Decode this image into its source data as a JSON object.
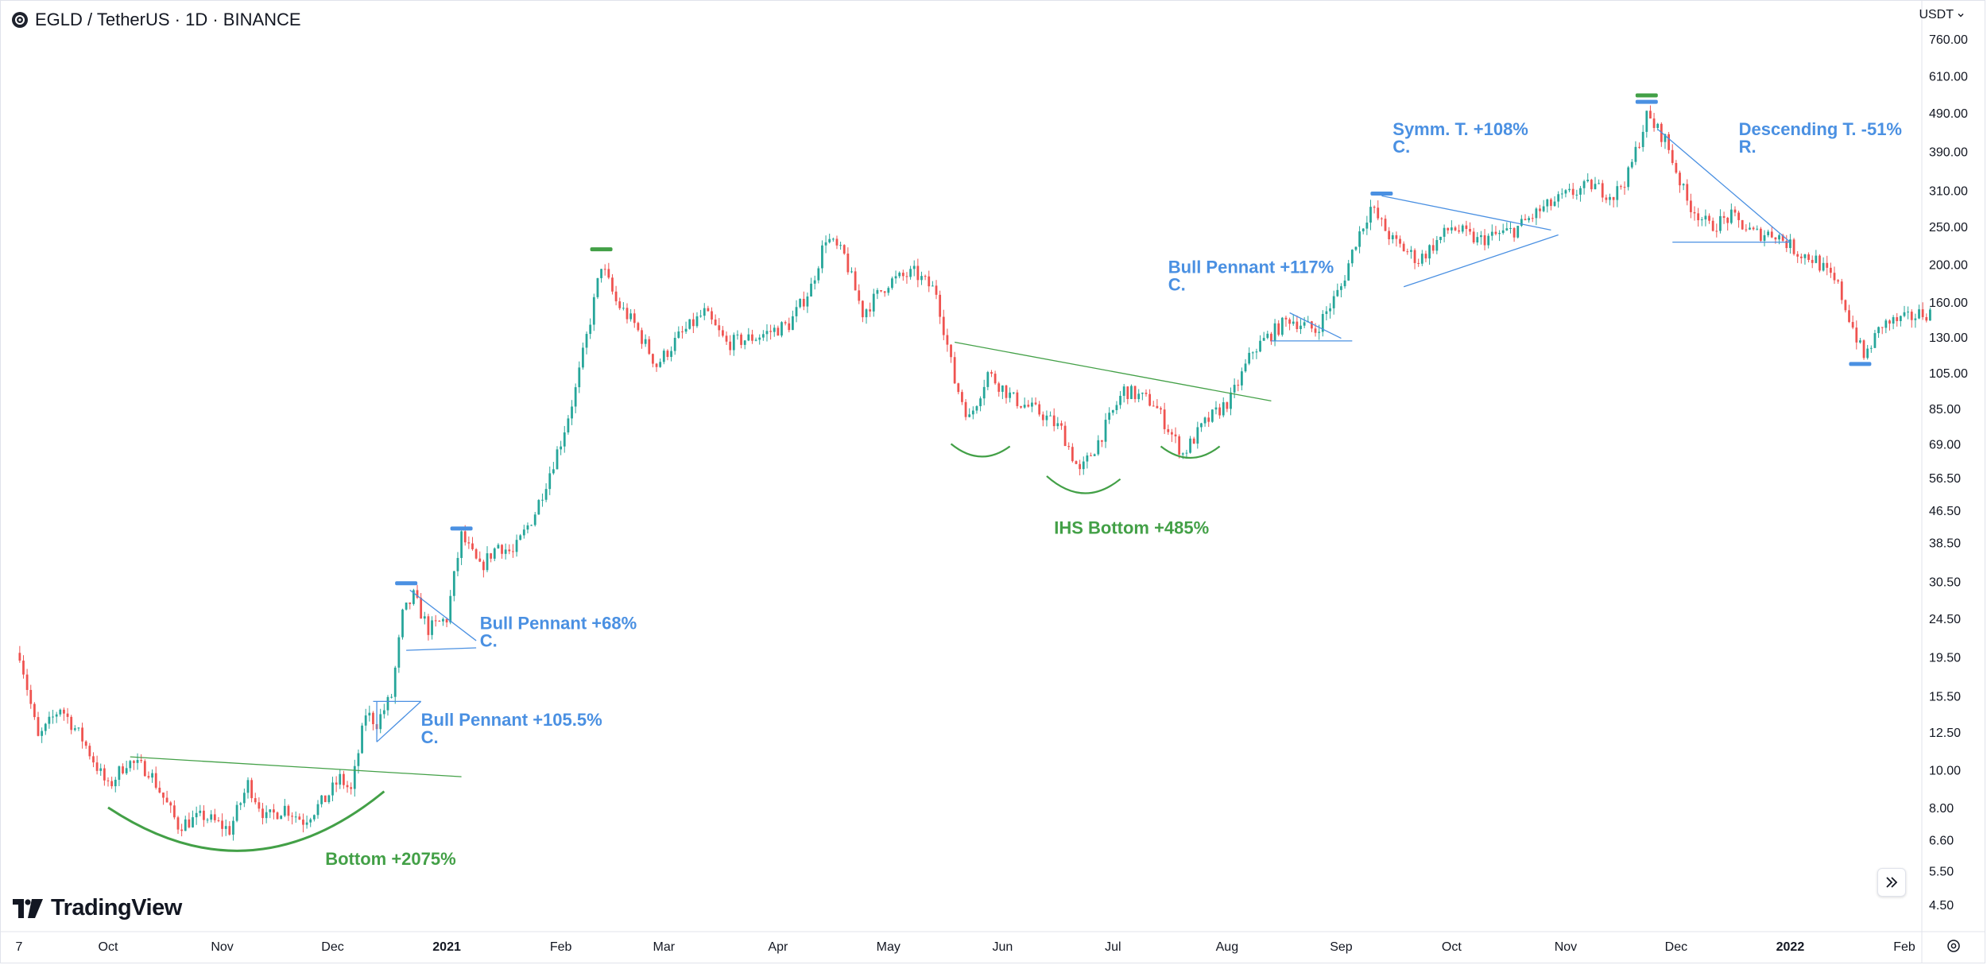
{
  "header": {
    "title": "EGLD / TetherUS · 1D · BINANCE"
  },
  "currency": {
    "label": "USDT"
  },
  "branding": {
    "name": "TradingView"
  },
  "colors": {
    "up": "#26a69a",
    "down": "#ef5350",
    "annotation_blue": "#4a90e2",
    "annotation_green": "#43a047",
    "axis_text": "#131722",
    "border": "#e0e3eb"
  },
  "icons": {
    "goto": "chevron-double-right-icon",
    "settings": "gear-icon",
    "logo": "tradingview-logo-icon"
  },
  "chart_data": {
    "type": "candlestick",
    "title": "EGLD / TetherUS · 1D · BINANCE",
    "scale": "log",
    "ylim": [
      4.0,
      900.0
    ],
    "xlim": [
      "2020-09-07",
      "2022-02-08"
    ],
    "grid": false,
    "price_axis_ticks": [
      760.0,
      610.0,
      490.0,
      390.0,
      310.0,
      250.0,
      200.0,
      160.0,
      130.0,
      105.0,
      85.0,
      69.0,
      56.5,
      46.5,
      38.5,
      30.5,
      24.5,
      19.5,
      15.5,
      12.5,
      10.0,
      8.0,
      6.6,
      5.5,
      4.5
    ],
    "price_axis_labels": [
      "760.00",
      "610.00",
      "490.00",
      "390.00",
      "310.00",
      "250.00",
      "200.00",
      "160.00",
      "130.00",
      "105.00",
      "85.00",
      "69.00",
      "56.50",
      "46.50",
      "38.50",
      "30.50",
      "24.50",
      "19.50",
      "15.50",
      "12.50",
      "10.00",
      "8.00",
      "6.60",
      "5.50",
      "4.50"
    ],
    "time_axis_ticks": [
      {
        "label": "7",
        "date": "2020-09-07",
        "bold": false
      },
      {
        "label": "Oct",
        "date": "2020-10-01",
        "bold": false
      },
      {
        "label": "Nov",
        "date": "2020-11-01",
        "bold": false
      },
      {
        "label": "Dec",
        "date": "2020-12-01",
        "bold": false
      },
      {
        "label": "2021",
        "date": "2021-01-01",
        "bold": true
      },
      {
        "label": "Feb",
        "date": "2021-02-01",
        "bold": false
      },
      {
        "label": "Mar",
        "date": "2021-03-01",
        "bold": false
      },
      {
        "label": "Apr",
        "date": "2021-04-01",
        "bold": false
      },
      {
        "label": "May",
        "date": "2021-05-01",
        "bold": false
      },
      {
        "label": "Jun",
        "date": "2021-06-01",
        "bold": false
      },
      {
        "label": "Jul",
        "date": "2021-07-01",
        "bold": false
      },
      {
        "label": "Aug",
        "date": "2021-08-01",
        "bold": false
      },
      {
        "label": "Sep",
        "date": "2021-09-01",
        "bold": false
      },
      {
        "label": "Oct",
        "date": "2021-10-01",
        "bold": false
      },
      {
        "label": "Nov",
        "date": "2021-11-01",
        "bold": false
      },
      {
        "label": "Dec",
        "date": "2021-12-01",
        "bold": false
      },
      {
        "label": "2022",
        "date": "2022-01-01",
        "bold": true
      },
      {
        "label": "Feb",
        "date": "2022-02-01",
        "bold": false
      }
    ],
    "price_path": [
      [
        "2020-09-07",
        20.0
      ],
      [
        "2020-09-12",
        12.0
      ],
      [
        "2020-09-18",
        14.5
      ],
      [
        "2020-09-24",
        12.0
      ],
      [
        "2020-10-01",
        9.0
      ],
      [
        "2020-10-06",
        10.5
      ],
      [
        "2020-10-12",
        10.0
      ],
      [
        "2020-10-20",
        7.2
      ],
      [
        "2020-10-27",
        7.6
      ],
      [
        "2020-11-03",
        7.0
      ],
      [
        "2020-11-08",
        9.2
      ],
      [
        "2020-11-13",
        7.5
      ],
      [
        "2020-11-18",
        8.0
      ],
      [
        "2020-11-23",
        7.4
      ],
      [
        "2020-11-29",
        8.4
      ],
      [
        "2020-12-03",
        9.5
      ],
      [
        "2020-12-06",
        8.8
      ],
      [
        "2020-12-10",
        14.0
      ],
      [
        "2020-12-13",
        13.2
      ],
      [
        "2020-12-17",
        15.5
      ],
      [
        "2020-12-20",
        25.0
      ],
      [
        "2020-12-23",
        28.0
      ],
      [
        "2020-12-27",
        23.0
      ],
      [
        "2021-01-01",
        24.5
      ],
      [
        "2021-01-05",
        40.0
      ],
      [
        "2021-01-10",
        33.0
      ],
      [
        "2021-01-15",
        38.0
      ],
      [
        "2021-01-19",
        36.0
      ],
      [
        "2021-01-25",
        46.0
      ],
      [
        "2021-02-01",
        70.0
      ],
      [
        "2021-02-05",
        95.0
      ],
      [
        "2021-02-10",
        160.0
      ],
      [
        "2021-02-12",
        200.0
      ],
      [
        "2021-02-16",
        160.0
      ],
      [
        "2021-02-21",
        140.0
      ],
      [
        "2021-02-27",
        110.0
      ],
      [
        "2021-03-05",
        130.0
      ],
      [
        "2021-03-12",
        150.0
      ],
      [
        "2021-03-18",
        125.0
      ],
      [
        "2021-03-26",
        130.0
      ],
      [
        "2021-04-04",
        140.0
      ],
      [
        "2021-04-10",
        175.0
      ],
      [
        "2021-04-14",
        235.0
      ],
      [
        "2021-04-19",
        210.0
      ],
      [
        "2021-04-24",
        150.0
      ],
      [
        "2021-05-01",
        180.0
      ],
      [
        "2021-05-08",
        190.0
      ],
      [
        "2021-05-14",
        170.0
      ],
      [
        "2021-05-19",
        100.0
      ],
      [
        "2021-05-23",
        80.0
      ],
      [
        "2021-05-28",
        105.0
      ],
      [
        "2021-06-04",
        90.0
      ],
      [
        "2021-06-12",
        82.0
      ],
      [
        "2021-06-17",
        75.0
      ],
      [
        "2021-06-22",
        58.0
      ],
      [
        "2021-06-27",
        70.0
      ],
      [
        "2021-07-04",
        95.0
      ],
      [
        "2021-07-12",
        88.0
      ],
      [
        "2021-07-20",
        65.0
      ],
      [
        "2021-07-26",
        78.0
      ],
      [
        "2021-08-02",
        90.0
      ],
      [
        "2021-08-08",
        120.0
      ],
      [
        "2021-08-14",
        135.0
      ],
      [
        "2021-08-18",
        145.0
      ],
      [
        "2021-08-25",
        135.0
      ],
      [
        "2021-09-01",
        175.0
      ],
      [
        "2021-09-05",
        230.0
      ],
      [
        "2021-09-09",
        280.0
      ],
      [
        "2021-09-15",
        230.0
      ],
      [
        "2021-09-22",
        205.0
      ],
      [
        "2021-10-01",
        250.0
      ],
      [
        "2021-10-08",
        230.0
      ],
      [
        "2021-10-18",
        245.0
      ],
      [
        "2021-10-25",
        275.0
      ],
      [
        "2021-11-01",
        300.0
      ],
      [
        "2021-11-08",
        320.0
      ],
      [
        "2021-11-14",
        300.0
      ],
      [
        "2021-11-18",
        340.0
      ],
      [
        "2021-11-23",
        480.0
      ],
      [
        "2021-11-28",
        420.0
      ],
      [
        "2021-12-04",
        290.0
      ],
      [
        "2021-12-10",
        250.0
      ],
      [
        "2021-12-16",
        265.0
      ],
      [
        "2021-12-22",
        240.0
      ],
      [
        "2021-12-28",
        240.0
      ],
      [
        "2022-01-03",
        215.0
      ],
      [
        "2022-01-08",
        205.0
      ],
      [
        "2022-01-14",
        175.0
      ],
      [
        "2022-01-21",
        115.0
      ],
      [
        "2022-01-26",
        140.0
      ],
      [
        "2022-02-02",
        145.0
      ],
      [
        "2022-02-06",
        150.0
      ]
    ],
    "annotations": [
      {
        "text": [
          "Bottom +2075%"
        ],
        "color": "green",
        "at": [
          "2020-11-29",
          5.7
        ]
      },
      {
        "text": [
          "Bull Pennant +105.5%",
          "C."
        ],
        "color": "blue",
        "at": [
          "2020-12-25",
          13.0
        ]
      },
      {
        "text": [
          "Bull Pennant +68%",
          "C."
        ],
        "color": "blue",
        "at": [
          "2021-01-10",
          23.0
        ]
      },
      {
        "text": [
          "IHS Bottom +485%"
        ],
        "color": "green",
        "at": [
          "2021-06-15",
          40.5
        ]
      },
      {
        "text": [
          "Bull Pennant +117%",
          "C."
        ],
        "color": "blue",
        "at": [
          "2021-07-16",
          190.0
        ]
      },
      {
        "text": [
          "Symm. T. +108%",
          "C."
        ],
        "color": "blue",
        "at": [
          "2021-09-15",
          430.0
        ]
      },
      {
        "text": [
          "Descending T. -51%",
          "R."
        ],
        "color": "blue",
        "at": [
          "2021-12-18",
          430.0
        ]
      }
    ]
  }
}
